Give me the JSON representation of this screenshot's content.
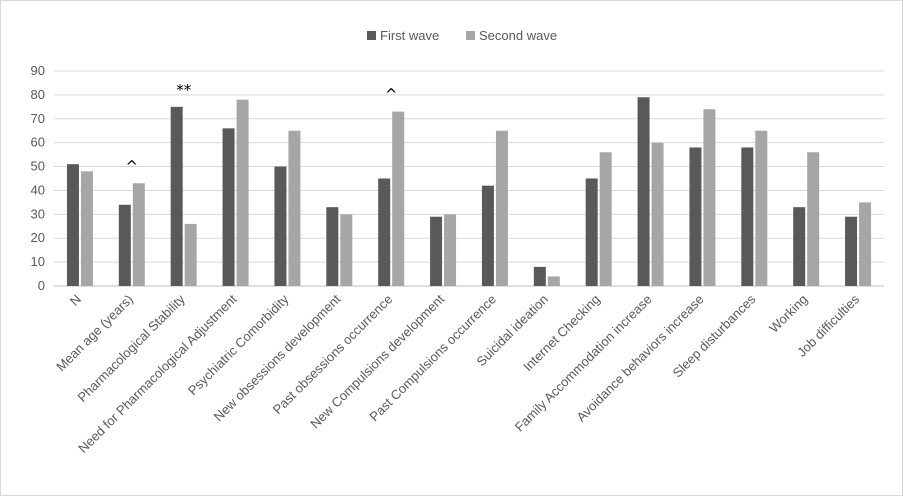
{
  "chart_data": {
    "type": "bar",
    "categories": [
      "N",
      "Mean age (years)",
      "Pharmacological Stability",
      "Need for Pharmacological Adjustment",
      "Psychiatric Comorbidity",
      "New obsessions development",
      "Past obsessions occurrence",
      "New Compulsions development",
      "Past Compulsions occurrence",
      "Suicidal ideation",
      "Internet Checking",
      "Family Accommodation increase",
      "Avoidance behaviors increase",
      "Sleep disturbances",
      "Working",
      "Job difficulties"
    ],
    "series": [
      {
        "name": "First wave",
        "color": "#595959",
        "values": [
          51,
          34,
          75,
          66,
          50,
          33,
          45,
          29,
          42,
          8,
          45,
          79,
          58,
          58,
          33,
          29
        ]
      },
      {
        "name": "Second wave",
        "color": "#a6a6a6",
        "values": [
          48,
          43,
          26,
          78,
          65,
          30,
          73,
          30,
          65,
          4,
          56,
          60,
          74,
          65,
          56,
          35
        ]
      }
    ],
    "ylim": [
      0,
      90
    ],
    "yticks": [
      0,
      10,
      20,
      30,
      40,
      50,
      60,
      70,
      80,
      90
    ],
    "grid": true,
    "legend_position": "top",
    "annotations": [
      {
        "category_index": 1,
        "text": "^"
      },
      {
        "category_index": 2,
        "text": "**"
      },
      {
        "category_index": 6,
        "text": "^"
      }
    ]
  }
}
